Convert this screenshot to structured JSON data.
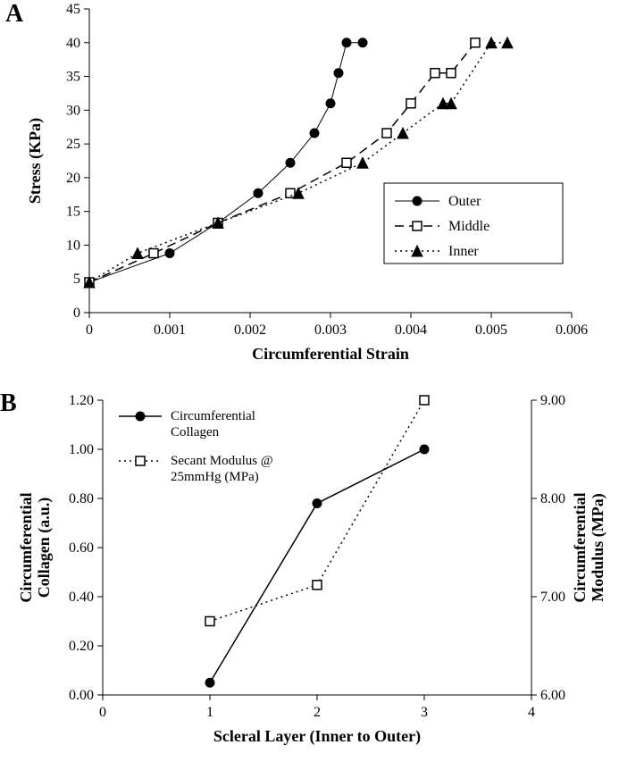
{
  "panelA": {
    "label": "A",
    "type": "line",
    "x_title": "Circumferential Strain",
    "y_title": "Stress (KPa)",
    "xlim": [
      0,
      0.006
    ],
    "xtick_step": 0.001,
    "ylim": [
      0,
      45
    ],
    "ytick_step": 5,
    "tick_fontsize": 16,
    "title_fontsize": 18,
    "background_color": "#ffffff",
    "axis_color": "#000000",
    "legend": {
      "border_color": "#000000",
      "fontsize": 16,
      "items": [
        "Outer",
        "Middle",
        "Inner"
      ]
    },
    "series": [
      {
        "name": "Outer",
        "line_color": "#000000",
        "line_width": 1,
        "dash": "solid",
        "marker": "circle_filled",
        "marker_size": 5,
        "marker_color": "#000000",
        "x": [
          0.0,
          0.001,
          0.0016,
          0.0021,
          0.0025,
          0.0028,
          0.003,
          0.0031,
          0.0032,
          0.0034
        ],
        "y": [
          4.5,
          8.8,
          13.3,
          17.7,
          22.2,
          26.6,
          31.0,
          35.5,
          40.0,
          40.0
        ]
      },
      {
        "name": "Middle",
        "line_color": "#000000",
        "line_width": 1.5,
        "dash": "dashed",
        "marker": "square_open",
        "marker_size": 5,
        "marker_color": "#000000",
        "x": [
          0.0,
          0.0008,
          0.0016,
          0.0025,
          0.0032,
          0.0037,
          0.004,
          0.0043,
          0.0045,
          0.0048
        ],
        "y": [
          4.5,
          8.8,
          13.3,
          17.7,
          22.2,
          26.6,
          31.0,
          35.5,
          35.5,
          40.0
        ]
      },
      {
        "name": "Inner",
        "line_color": "#000000",
        "line_width": 1.5,
        "dash": "dotted",
        "marker": "triangle_filled",
        "marker_size": 5,
        "marker_color": "#000000",
        "x": [
          0.0,
          0.0006,
          0.0016,
          0.0026,
          0.0034,
          0.0039,
          0.0044,
          0.0045,
          0.005,
          0.0052
        ],
        "y": [
          4.5,
          8.8,
          13.3,
          17.7,
          22.2,
          26.6,
          31.0,
          31.0,
          40.0,
          40.0
        ]
      }
    ]
  },
  "panelB": {
    "label": "B",
    "type": "line_dual_y",
    "x_title": "Scleral Layer (Inner to Outer)",
    "y_title_left": "Circumferential\nCollagen (a.u.)",
    "y_title_right": "Circumferential\nModulus (MPa)",
    "xlim": [
      0,
      4
    ],
    "xtick_step": 1,
    "ylim_left": [
      0.0,
      1.2
    ],
    "ytick_step_left": 0.2,
    "ylim_right": [
      6.0,
      9.0
    ],
    "ytick_step_right": 1.0,
    "tick_fontsize": 16,
    "title_fontsize": 18,
    "background_color": "#ffffff",
    "axis_color": "#000000",
    "legend": {
      "fontsize": 15,
      "items": [
        "Circumferential Collagen",
        "Secant Modulus @ 25mmHg (MPa)"
      ]
    },
    "series": [
      {
        "name": "Circumferential Collagen",
        "axis": "left",
        "line_color": "#000000",
        "line_width": 1.5,
        "dash": "solid",
        "marker": "circle_filled",
        "marker_size": 5,
        "marker_color": "#000000",
        "x": [
          1,
          2,
          3
        ],
        "y": [
          0.05,
          0.78,
          1.0
        ]
      },
      {
        "name": "Secant Modulus @ 25mmHg (MPa)",
        "axis": "right",
        "line_color": "#000000",
        "line_width": 1.5,
        "dash": "dotted",
        "marker": "square_open",
        "marker_size": 5,
        "marker_color": "#000000",
        "x": [
          1,
          2,
          3
        ],
        "y": [
          6.75,
          7.12,
          9.0
        ]
      }
    ]
  }
}
